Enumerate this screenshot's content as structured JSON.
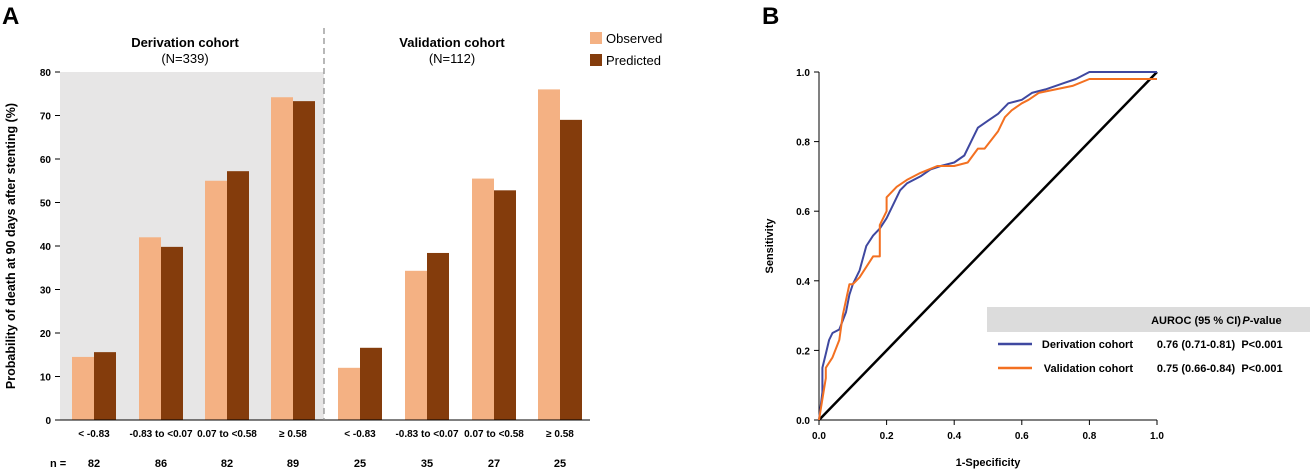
{
  "colors": {
    "observed": "#F4B183",
    "predicted": "#843C0C",
    "derivation_bg": "#E7E6E6",
    "header_bg": "#DCDCDC",
    "derivation_line": "#3F48A0",
    "validation_line": "#F37021",
    "diagonal": "#000000"
  },
  "panel_a": {
    "label": "A",
    "ylabel": "Probability of death at 90 days after stenting (%)",
    "group_left_title": "Derivation cohort",
    "group_left_n": "(N=339)",
    "group_right_title": "Validation cohort",
    "group_right_n": "(N=112)",
    "n_label": "n ="
  },
  "panel_b": {
    "label": "B",
    "xlabel": "1-Specificity",
    "ylabel": "Sensitivity",
    "table": {
      "header_auroc": "AUROC (95 % CI)",
      "header_p": "P-value",
      "header_p_italic": "P",
      "header_p_rest": "-value",
      "rows": [
        {
          "name": "Derivation cohort",
          "auroc": "0.76 (0.71-0.81)",
          "p": "P<0.001"
        },
        {
          "name": "Validation cohort",
          "auroc": "0.75 (0.66-0.84)",
          "p": "P<0.001"
        }
      ]
    }
  },
  "chart_data": [
    {
      "type": "bar",
      "title": "",
      "xlabel": "",
      "ylabel": "Probability of death at 90 days after stenting (%)",
      "ylim": [
        0,
        80
      ],
      "yticks": [
        0,
        10,
        20,
        30,
        40,
        50,
        60,
        70,
        80
      ],
      "categories": [
        "< -0.83",
        "-0.83 to <0.07",
        "0.07 to <0.58",
        "≥ 0.58",
        "< -0.83",
        "-0.83 to <0.07",
        "0.07 to <0.58",
        "≥ 0.58"
      ],
      "groups": [
        "Derivation cohort",
        "Derivation cohort",
        "Derivation cohort",
        "Derivation cohort",
        "Validation cohort",
        "Validation cohort",
        "Validation cohort",
        "Validation cohort"
      ],
      "n": [
        "82",
        "86",
        "82",
        "89",
        "25",
        "35",
        "27",
        "25"
      ],
      "series": [
        {
          "name": "Observed",
          "values": [
            14.5,
            42,
            55,
            74.2,
            12,
            34.3,
            55.5,
            76
          ]
        },
        {
          "name": "Predicted",
          "values": [
            15.6,
            39.8,
            57.2,
            73.3,
            16.6,
            38.4,
            52.8,
            69
          ]
        }
      ],
      "legend": "top-right"
    },
    {
      "type": "line",
      "title": "",
      "xlabel": "1-Specificity",
      "ylabel": "Sensitivity",
      "xlim": [
        0,
        1
      ],
      "ylim": [
        0,
        1
      ],
      "xticks": [
        "0.0",
        "0.2",
        "0.4",
        "0.6",
        "0.8",
        "1.0"
      ],
      "yticks": [
        "0.0",
        "0.2",
        "0.4",
        "0.6",
        "0.8",
        "1.0"
      ],
      "series": [
        {
          "name": "Derivation cohort",
          "auroc": "0.76 (0.71-0.81)",
          "x": [
            0,
            0.01,
            0.01,
            0.02,
            0.03,
            0.04,
            0.06,
            0.08,
            0.09,
            0.1,
            0.12,
            0.14,
            0.16,
            0.18,
            0.2,
            0.22,
            0.24,
            0.26,
            0.28,
            0.3,
            0.33,
            0.36,
            0.4,
            0.43,
            0.45,
            0.47,
            0.5,
            0.53,
            0.56,
            0.6,
            0.63,
            0.67,
            0.7,
            0.73,
            0.76,
            0.8,
            0.85,
            0.9,
            1.0
          ],
          "y": [
            0,
            0.08,
            0.15,
            0.19,
            0.23,
            0.25,
            0.26,
            0.31,
            0.36,
            0.39,
            0.43,
            0.5,
            0.53,
            0.55,
            0.58,
            0.62,
            0.66,
            0.68,
            0.69,
            0.7,
            0.72,
            0.73,
            0.74,
            0.76,
            0.8,
            0.84,
            0.86,
            0.88,
            0.91,
            0.92,
            0.94,
            0.95,
            0.96,
            0.97,
            0.98,
            1.0,
            1.0,
            1.0,
            1.0
          ]
        },
        {
          "name": "Validation cohort",
          "auroc": "0.75 (0.66-0.84)",
          "x": [
            0,
            0.02,
            0.02,
            0.04,
            0.06,
            0.07,
            0.09,
            0.1,
            0.12,
            0.14,
            0.16,
            0.18,
            0.18,
            0.2,
            0.2,
            0.23,
            0.26,
            0.3,
            0.35,
            0.4,
            0.44,
            0.47,
            0.49,
            0.53,
            0.55,
            0.57,
            0.6,
            0.62,
            0.65,
            0.7,
            0.75,
            0.8,
            0.85,
            1.0
          ],
          "y": [
            0,
            0.12,
            0.15,
            0.18,
            0.23,
            0.3,
            0.39,
            0.39,
            0.41,
            0.44,
            0.47,
            0.47,
            0.56,
            0.6,
            0.64,
            0.67,
            0.69,
            0.71,
            0.73,
            0.73,
            0.74,
            0.78,
            0.78,
            0.83,
            0.87,
            0.89,
            0.91,
            0.92,
            0.94,
            0.95,
            0.96,
            0.98,
            0.98,
            0.98
          ]
        },
        {
          "name": "Reference",
          "x": [
            0,
            1
          ],
          "y": [
            0,
            1
          ]
        }
      ]
    }
  ]
}
